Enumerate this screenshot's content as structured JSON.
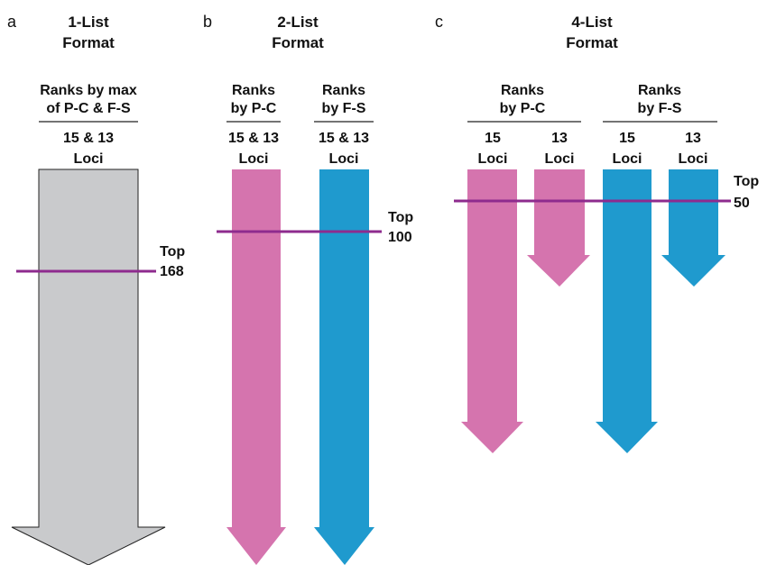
{
  "colors": {
    "gray_arrow": "#c9cacc",
    "pink_arrow": "#d574ae",
    "blue_arrow": "#1f9ace",
    "cutoff_line": "#8e2b8e",
    "rule": "#222222"
  },
  "panels": [
    {
      "letter": "a",
      "title_line1": "1-List",
      "title_line2": "Format",
      "columns": [
        {
          "header_line1": "Ranks by max",
          "header_line2": "of P-C & F-S",
          "loci_line1": "15 & 13",
          "loci_line2": "Loci",
          "arrow_color": "gray"
        }
      ],
      "cutoff": {
        "label_line1": "Top",
        "label_line2": "168"
      }
    },
    {
      "letter": "b",
      "title_line1": "2-List",
      "title_line2": "Format",
      "columns": [
        {
          "header_line1": "Ranks",
          "header_line2": "by P-C",
          "loci_line1": "15 & 13",
          "loci_line2": "Loci",
          "arrow_color": "pink"
        },
        {
          "header_line1": "Ranks",
          "header_line2": "by F-S",
          "loci_line1": "15 & 13",
          "loci_line2": "Loci",
          "arrow_color": "blue"
        }
      ],
      "cutoff": {
        "label_line1": "Top",
        "label_line2": "100"
      }
    },
    {
      "letter": "c",
      "title_line1": "4-List",
      "title_line2": "Format",
      "groups": [
        {
          "header_line1": "Ranks",
          "header_line2": "by P-C"
        },
        {
          "header_line1": "Ranks",
          "header_line2": "by F-S"
        }
      ],
      "columns": [
        {
          "loci_line1": "15",
          "loci_line2": "Loci",
          "arrow_color": "pink"
        },
        {
          "loci_line1": "13",
          "loci_line2": "Loci",
          "arrow_color": "pink"
        },
        {
          "loci_line1": "15",
          "loci_line2": "Loci",
          "arrow_color": "blue"
        },
        {
          "loci_line1": "13",
          "loci_line2": "Loci",
          "arrow_color": "blue"
        }
      ],
      "cutoff": {
        "label_line1": "Top",
        "label_line2": "50"
      }
    }
  ]
}
